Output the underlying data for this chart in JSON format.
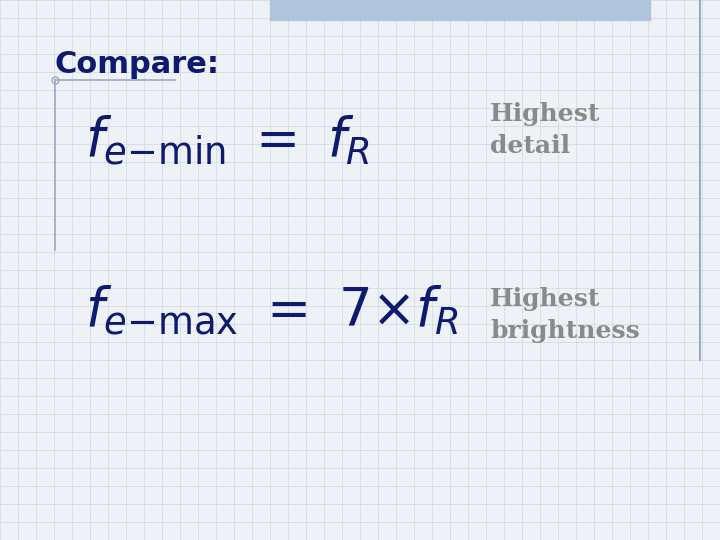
{
  "background_color": "#eef2f7",
  "grid_color": "#c5d0e0",
  "title": "Compare:",
  "title_color": "#0d1a6e",
  "title_fontsize": 22,
  "line1_note": "Highest\ndetail",
  "line2_note": "Highest\nbrightness",
  "formula_color": "#0d1a6e",
  "note_color": "#8a8a8a",
  "formula_fontsize": 38,
  "note_fontsize": 18,
  "accent_color": "#b0c4dc",
  "accent_line_color": "#9aaabf",
  "fig_width": 7.2,
  "fig_height": 5.4,
  "dpi": 100
}
